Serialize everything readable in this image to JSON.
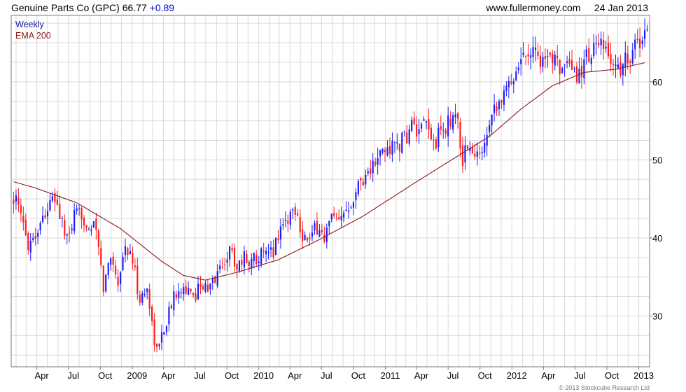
{
  "header": {
    "security": "Genuine Parts Co (GPC) 66.77",
    "change": "+0.89",
    "site": "www.fullermoney.com",
    "date": "24 Jan 2013"
  },
  "footer": {
    "copyright": "© 2013 Stockcube Research Ltd"
  },
  "colors": {
    "up": "#1a1aff",
    "down": "#ff1a1a",
    "ema": "#8b1a1a",
    "grid": "#d9d9d9"
  },
  "chart_data": {
    "type": "candlestick",
    "title": "Genuine Parts Co (GPC) 66.77 +0.89",
    "x_tick_labels": [
      "Apr",
      "Jul",
      "Oct",
      "2009",
      "Apr",
      "Jul",
      "Oct",
      "2010",
      "Apr",
      "Jul",
      "Oct",
      "2011",
      "Apr",
      "Jul",
      "Oct",
      "2012",
      "Apr",
      "Jul",
      "Oct",
      "2013"
    ],
    "y_ticks": [
      30,
      40,
      50,
      60
    ],
    "ylim": [
      23.5,
      68.5
    ],
    "grid": true,
    "legend": [
      "Weekly",
      "EMA 200"
    ],
    "legend_position": "top-left",
    "price_path": [
      [
        "2008-01-25",
        45.5
      ],
      [
        "2008-02-15",
        42.5
      ],
      [
        "2008-03-07",
        39.5
      ],
      [
        "2008-03-28",
        40.5
      ],
      [
        "2008-04-25",
        43.5
      ],
      [
        "2008-05-23",
        45.0
      ],
      [
        "2008-06-13",
        42.0
      ],
      [
        "2008-06-27",
        39.5
      ],
      [
        "2008-07-18",
        42.5
      ],
      [
        "2008-08-08",
        43.0
      ],
      [
        "2008-08-29",
        41.5
      ],
      [
        "2008-09-19",
        41.0
      ],
      [
        "2008-10-10",
        33.5
      ],
      [
        "2008-10-31",
        38.0
      ],
      [
        "2008-11-21",
        34.5
      ],
      [
        "2008-12-12",
        39.0
      ],
      [
        "2009-01-02",
        37.0
      ],
      [
        "2009-01-23",
        32.0
      ],
      [
        "2009-02-13",
        33.5
      ],
      [
        "2009-03-06",
        27.0
      ],
      [
        "2009-03-13",
        25.5
      ],
      [
        "2009-04-03",
        28.5
      ],
      [
        "2009-04-24",
        31.5
      ],
      [
        "2009-05-15",
        34.0
      ],
      [
        "2009-06-05",
        33.5
      ],
      [
        "2009-06-26",
        32.0
      ],
      [
        "2009-07-17",
        34.5
      ],
      [
        "2009-08-07",
        33.0
      ],
      [
        "2009-08-28",
        35.0
      ],
      [
        "2009-09-18",
        36.5
      ],
      [
        "2009-10-09",
        38.5
      ],
      [
        "2009-10-30",
        36.5
      ],
      [
        "2009-11-20",
        37.5
      ],
      [
        "2009-12-11",
        37.0
      ],
      [
        "2010-01-01",
        38.0
      ],
      [
        "2010-01-22",
        37.5
      ],
      [
        "2010-02-12",
        38.5
      ],
      [
        "2010-03-05",
        41.5
      ],
      [
        "2010-03-26",
        42.5
      ],
      [
        "2010-04-16",
        44.0
      ],
      [
        "2010-05-07",
        40.5
      ],
      [
        "2010-05-28",
        39.5
      ],
      [
        "2010-06-18",
        41.5
      ],
      [
        "2010-07-09",
        40.0
      ],
      [
        "2010-07-30",
        42.5
      ],
      [
        "2010-08-20",
        41.5
      ],
      [
        "2010-09-10",
        44.0
      ],
      [
        "2010-10-01",
        45.5
      ],
      [
        "2010-10-22",
        47.5
      ],
      [
        "2010-11-12",
        48.5
      ],
      [
        "2010-12-03",
        49.5
      ],
      [
        "2010-12-24",
        51.0
      ],
      [
        "2011-01-14",
        51.5
      ],
      [
        "2011-02-04",
        52.0
      ],
      [
        "2011-02-25",
        52.5
      ],
      [
        "2011-03-18",
        54.5
      ],
      [
        "2011-04-08",
        53.0
      ],
      [
        "2011-04-29",
        54.5
      ],
      [
        "2011-05-20",
        52.0
      ],
      [
        "2011-06-10",
        53.5
      ],
      [
        "2011-07-01",
        54.5
      ],
      [
        "2011-07-22",
        56.5
      ],
      [
        "2011-08-12",
        50.0
      ],
      [
        "2011-08-26",
        52.0
      ],
      [
        "2011-09-16",
        50.0
      ],
      [
        "2011-10-07",
        51.5
      ],
      [
        "2011-10-28",
        55.5
      ],
      [
        "2011-11-18",
        57.5
      ],
      [
        "2011-12-09",
        58.0
      ],
      [
        "2011-12-30",
        60.5
      ],
      [
        "2012-01-20",
        62.5
      ],
      [
        "2012-02-10",
        64.0
      ],
      [
        "2012-03-02",
        64.5
      ],
      [
        "2012-03-23",
        63.0
      ],
      [
        "2012-04-13",
        62.0
      ],
      [
        "2012-05-04",
        64.5
      ],
      [
        "2012-05-25",
        61.0
      ],
      [
        "2012-06-15",
        61.5
      ],
      [
        "2012-07-06",
        60.5
      ],
      [
        "2012-07-27",
        62.5
      ],
      [
        "2012-08-17",
        64.0
      ],
      [
        "2012-09-07",
        64.5
      ],
      [
        "2012-09-28",
        63.5
      ],
      [
        "2012-10-19",
        62.5
      ],
      [
        "2012-11-09",
        61.5
      ],
      [
        "2012-11-30",
        63.5
      ],
      [
        "2012-12-21",
        64.5
      ],
      [
        "2013-01-11",
        65.5
      ],
      [
        "2013-01-24",
        66.77
      ]
    ],
    "ema200_path": [
      [
        "2008-01-25",
        47.2
      ],
      [
        "2008-03-28",
        46.4
      ],
      [
        "2008-07-25",
        44.5
      ],
      [
        "2008-11-28",
        41.2
      ],
      [
        "2009-03-27",
        37.0
      ],
      [
        "2009-05-29",
        35.2
      ],
      [
        "2009-07-31",
        34.6
      ],
      [
        "2009-10-30",
        35.6
      ],
      [
        "2010-02-26",
        37.2
      ],
      [
        "2010-06-25",
        39.8
      ],
      [
        "2010-10-29",
        42.8
      ],
      [
        "2011-03-25",
        47.0
      ],
      [
        "2011-07-29",
        50.5
      ],
      [
        "2011-10-28",
        53.0
      ],
      [
        "2012-01-27",
        56.5
      ],
      [
        "2012-04-27",
        59.5
      ],
      [
        "2012-07-27",
        61.2
      ],
      [
        "2012-10-26",
        61.6
      ],
      [
        "2013-01-24",
        62.5
      ]
    ]
  }
}
